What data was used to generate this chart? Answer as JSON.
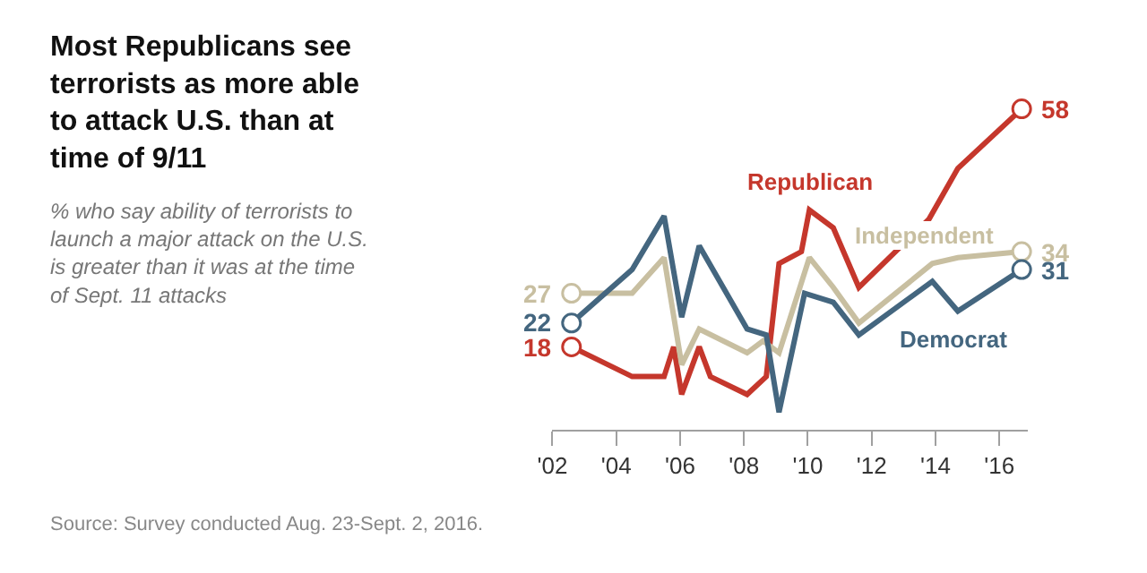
{
  "chart_data": {
    "type": "line",
    "title": "Most Republicans see terrorists as more able to attack U.S. than at time of 9/11",
    "subtitle": "% who say ability of terrorists to launch a major attack on the U.S. is greater than it was at the time of Sept. 11 attacks",
    "annotations": [
      "Source: Survey conducted Aug. 23-Sept. 2, 2016."
    ],
    "xlim": [
      2002,
      2016.9
    ],
    "xticks": [
      {
        "value": 2002,
        "label": "'02"
      },
      {
        "value": 2004,
        "label": "'04"
      },
      {
        "value": 2006,
        "label": "'06"
      },
      {
        "value": 2008,
        "label": "'08"
      },
      {
        "value": 2010,
        "label": "'10"
      },
      {
        "value": 2012,
        "label": "'12"
      },
      {
        "value": 2014,
        "label": "'14"
      },
      {
        "value": 2016,
        "label": "'16"
      }
    ],
    "tick_labels": "x",
    "legend": false,
    "series": [
      {
        "name": "Republican",
        "color": "#c5372c",
        "x": [
          2002.6,
          2004.5,
          2005.5,
          2005.8,
          2006.05,
          2006.6,
          2006.95,
          2008.1,
          2008.7,
          2009.1,
          2009.8,
          2010.05,
          2010.8,
          2011.6,
          2013.8,
          2014.7,
          2016.7
        ],
        "values": [
          18,
          13,
          13,
          18,
          10,
          18,
          13,
          10,
          13,
          32,
          34,
          41,
          38,
          28,
          39.5,
          48,
          58
        ],
        "value_labels": [
          "18",
          null,
          null,
          null,
          null,
          null,
          null,
          null,
          null,
          null,
          null,
          null,
          null,
          null,
          null,
          null,
          "58"
        ]
      },
      {
        "name": "Independent",
        "color": "#c8bfa1",
        "x": [
          2002.6,
          2004.5,
          2005.5,
          2006.05,
          2006.6,
          2008.1,
          2008.6,
          2009.1,
          2010.05,
          2010.8,
          2011.6,
          2013.9,
          2014.7,
          2016.7
        ],
        "values": [
          27,
          27,
          33,
          15,
          21,
          17,
          19,
          17,
          33,
          28,
          22,
          32,
          33,
          34
        ],
        "value_labels": [
          "27",
          null,
          null,
          null,
          null,
          null,
          null,
          null,
          null,
          null,
          null,
          null,
          null,
          "34"
        ]
      },
      {
        "name": "Democrat",
        "color": "#44667f",
        "x": [
          2002.6,
          2004.5,
          2005.5,
          2006.05,
          2006.6,
          2008.1,
          2008.7,
          2009.1,
          2009.9,
          2010.8,
          2011.6,
          2013.9,
          2014.7,
          2016.7
        ],
        "values": [
          22,
          31,
          40,
          23,
          35,
          21,
          20,
          7,
          27,
          25.5,
          20,
          29,
          24,
          31
        ],
        "value_labels": [
          "22",
          null,
          null,
          null,
          null,
          null,
          null,
          null,
          null,
          null,
          null,
          null,
          null,
          "31"
        ]
      }
    ]
  }
}
